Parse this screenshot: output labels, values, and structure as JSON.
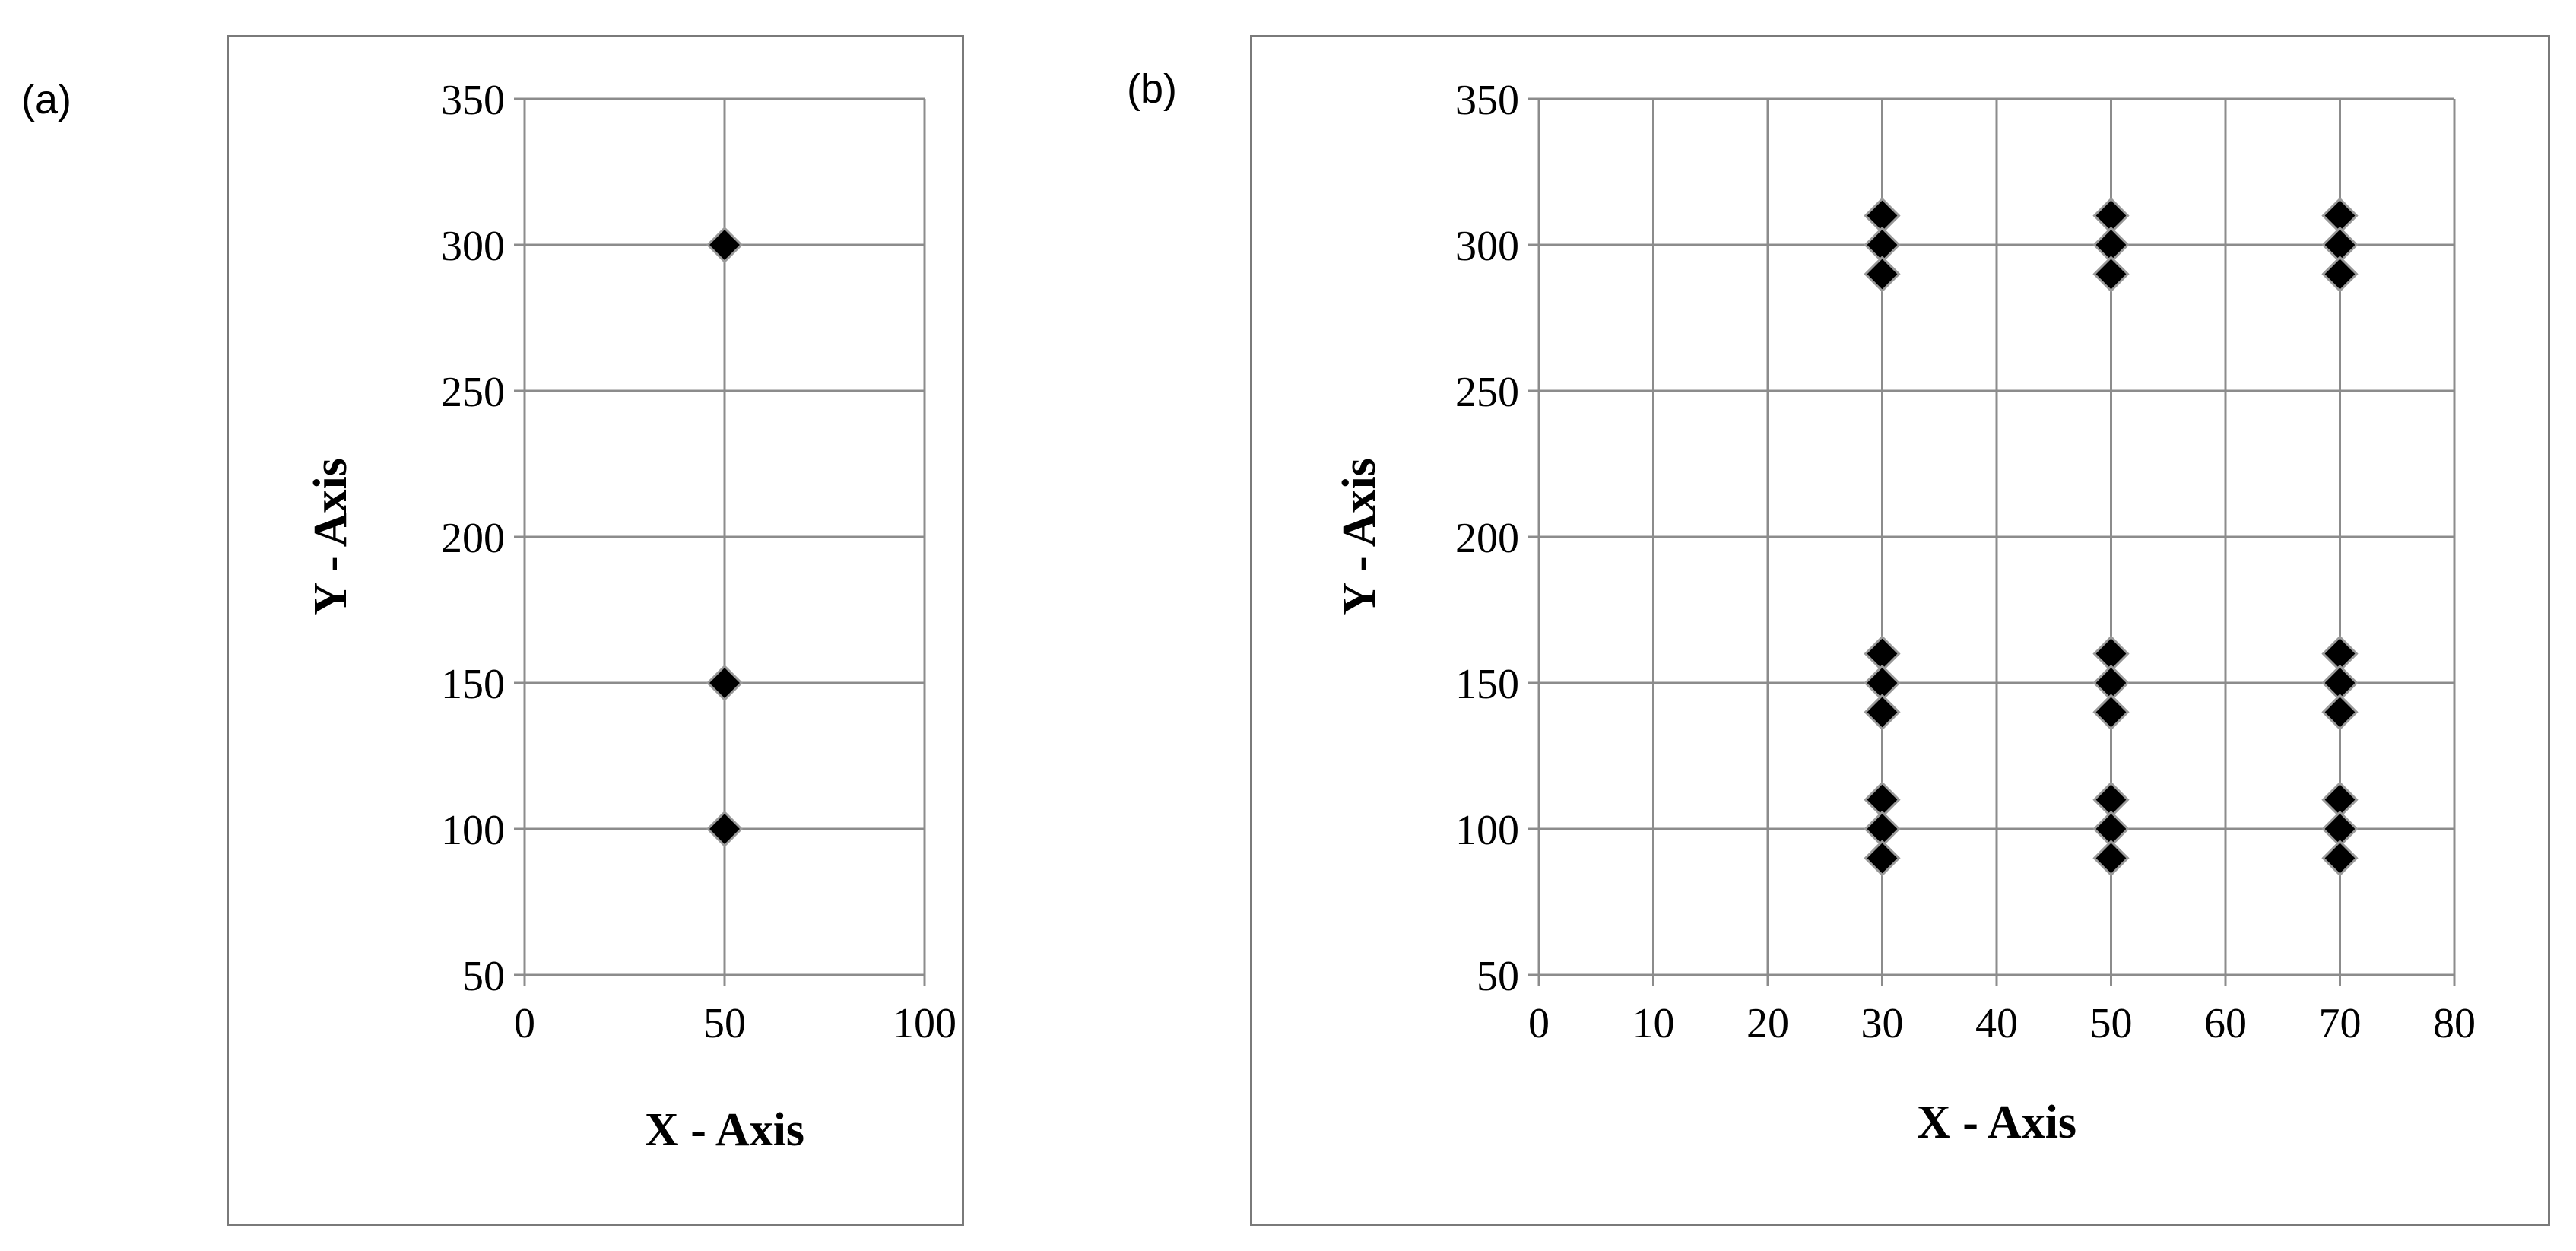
{
  "panels": [
    {
      "label": "(a)"
    },
    {
      "label": "(b)"
    }
  ],
  "chart_data": [
    {
      "type": "scatter",
      "panel": "(a)",
      "xlabel": "X - Axis",
      "ylabel": "Y - Axis",
      "xlim": [
        0,
        100
      ],
      "ylim": [
        50,
        350
      ],
      "xticks": [
        0,
        50,
        100
      ],
      "yticks": [
        50,
        100,
        150,
        200,
        250,
        300,
        350
      ],
      "grid": true,
      "marker": "diamond",
      "series": [
        {
          "x": [
            50,
            50,
            50
          ],
          "y": [
            300,
            150,
            100
          ]
        }
      ]
    },
    {
      "type": "scatter",
      "panel": "(b)",
      "xlabel": "X - Axis",
      "ylabel": "Y - Axis",
      "xlim": [
        0,
        80
      ],
      "ylim": [
        50,
        350
      ],
      "xticks": [
        0,
        10,
        20,
        30,
        40,
        50,
        60,
        70,
        80
      ],
      "yticks": [
        50,
        100,
        150,
        200,
        250,
        300,
        350
      ],
      "grid": true,
      "marker": "diamond",
      "series": [
        {
          "x": [
            30,
            30,
            30,
            30,
            30,
            30,
            30,
            30,
            30,
            50,
            50,
            50,
            50,
            50,
            50,
            50,
            50,
            50,
            70,
            70,
            70,
            70,
            70,
            70,
            70,
            70,
            70
          ],
          "y": [
            310,
            300,
            290,
            160,
            150,
            140,
            110,
            100,
            90,
            310,
            300,
            290,
            160,
            150,
            140,
            110,
            100,
            90,
            310,
            300,
            290,
            160,
            150,
            140,
            110,
            100,
            90
          ]
        }
      ]
    }
  ]
}
